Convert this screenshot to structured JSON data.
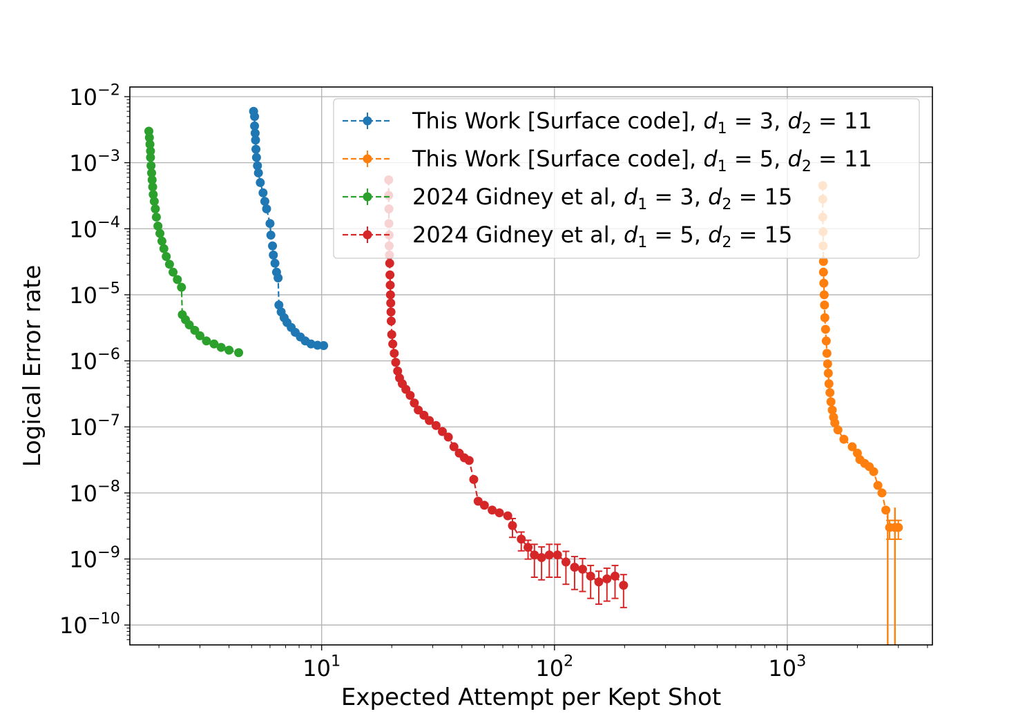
{
  "chart_data": {
    "type": "scatter",
    "xlabel": "Expected Attempt per Kept Shot",
    "ylabel": "Logical Error rate",
    "xscale": "log",
    "yscale": "log",
    "xlim": [
      1.5,
      4200
    ],
    "ylim": [
      5e-11,
      0.014
    ],
    "grid": true,
    "legend_position": "top-right",
    "x_ticks": [
      {
        "value": 10,
        "base": "10",
        "exp": "1"
      },
      {
        "value": 100,
        "base": "10",
        "exp": "2"
      },
      {
        "value": 1000,
        "base": "10",
        "exp": "3"
      }
    ],
    "y_ticks": [
      {
        "value": 0.01,
        "base": "10",
        "exp": "−2"
      },
      {
        "value": 0.001,
        "base": "10",
        "exp": "−3"
      },
      {
        "value": 0.0001,
        "base": "10",
        "exp": "−4"
      },
      {
        "value": 1e-05,
        "base": "10",
        "exp": "−5"
      },
      {
        "value": 1e-06,
        "base": "10",
        "exp": "−6"
      },
      {
        "value": 1e-07,
        "base": "10",
        "exp": "−7"
      },
      {
        "value": 1e-08,
        "base": "10",
        "exp": "−8"
      },
      {
        "value": 1e-09,
        "base": "10",
        "exp": "−9"
      },
      {
        "value": 1e-10,
        "base": "10",
        "exp": "−10"
      }
    ],
    "series": [
      {
        "name": "This Work [Surface code], d1 = 3, d2 = 11",
        "legend": {
          "prefix": "This Work [Surface code], ",
          "d1": "3",
          "d2": "11"
        },
        "color": "#1f77b4",
        "points": [
          [
            5.1,
            0.006
          ],
          [
            5.15,
            0.005
          ],
          [
            5.15,
            0.0036
          ],
          [
            5.18,
            0.0028
          ],
          [
            5.2,
            0.0022
          ],
          [
            5.22,
            0.0016
          ],
          [
            5.25,
            0.0012
          ],
          [
            5.3,
            0.0009
          ],
          [
            5.35,
            0.0007
          ],
          [
            5.45,
            0.0005
          ],
          [
            5.6,
            0.00035
          ],
          [
            5.7,
            0.00026
          ],
          [
            5.8,
            0.0002
          ],
          [
            6.0,
            0.00012
          ],
          [
            6.05,
            8e-05
          ],
          [
            6.15,
            5.5e-05
          ],
          [
            6.2,
            4e-05
          ],
          [
            6.3,
            3e-05
          ],
          [
            6.4,
            2.2e-05
          ],
          [
            6.5,
            1.8e-05
          ],
          [
            6.55,
            7e-06
          ],
          [
            6.7,
            5.5e-06
          ],
          [
            6.9,
            4.5e-06
          ],
          [
            7.1,
            3.8e-06
          ],
          [
            7.4,
            3.2e-06
          ],
          [
            7.7,
            2.7e-06
          ],
          [
            8.1,
            2.3e-06
          ],
          [
            8.5,
            2e-06
          ],
          [
            9.0,
            1.8e-06
          ],
          [
            9.6,
            1.72e-06
          ],
          [
            10.2,
            1.7e-06
          ]
        ]
      },
      {
        "name": "This Work [Surface code], d1 = 5, d2 = 11",
        "legend": {
          "prefix": "This Work [Surface code], ",
          "d1": "5",
          "d2": "11"
        },
        "color": "#ff7f0e",
        "points": [
          [
            1420,
            0.00045
          ],
          [
            1420,
            0.00028
          ],
          [
            1420,
            0.00015
          ],
          [
            1425,
            9e-05
          ],
          [
            1425,
            5.5e-05
          ],
          [
            1430,
            3.2e-05
          ],
          [
            1430,
            2.2e-05
          ],
          [
            1435,
            1.5e-05
          ],
          [
            1440,
            1e-05
          ],
          [
            1445,
            7e-06
          ],
          [
            1450,
            4.5e-06
          ],
          [
            1460,
            3e-06
          ],
          [
            1470,
            2e-06
          ],
          [
            1480,
            1.3e-06
          ],
          [
            1490,
            9e-07
          ],
          [
            1500,
            6.5e-07
          ],
          [
            1510,
            4.5e-07
          ],
          [
            1525,
            3.3e-07
          ],
          [
            1540,
            2.4e-07
          ],
          [
            1560,
            1.8e-07
          ],
          [
            1580,
            1.4e-07
          ],
          [
            1600,
            1.15e-07
          ],
          [
            1650,
            9e-08
          ],
          [
            1750,
            6.5e-08
          ],
          [
            1900,
            5e-08
          ],
          [
            2000,
            4e-08
          ],
          [
            2050,
            3.2e-08
          ],
          [
            2150,
            2.8e-08
          ],
          [
            2250,
            2.5e-08
          ],
          [
            2350,
            2.1e-08
          ],
          [
            2450,
            1.3e-08
          ],
          [
            2550,
            1e-08
          ],
          [
            2650,
            5.5e-09
          ],
          [
            2750,
            3e-09
          ],
          [
            2900,
            3e-09
          ],
          [
            3000,
            3e-09
          ]
        ]
      },
      {
        "name": "2024 Gidney et al, d1 = 3, d2 = 15",
        "legend": {
          "prefix": "2024 Gidney et al, ",
          "d1": "3",
          "d2": "15"
        },
        "color": "#2ca02c",
        "points": [
          [
            1.81,
            0.003
          ],
          [
            1.82,
            0.0024
          ],
          [
            1.83,
            0.0019
          ],
          [
            1.84,
            0.0015
          ],
          [
            1.84,
            0.0012
          ],
          [
            1.85,
            0.0009
          ],
          [
            1.86,
            0.0007
          ],
          [
            1.87,
            0.00055
          ],
          [
            1.88,
            0.00043
          ],
          [
            1.89,
            0.00033
          ],
          [
            1.91,
            0.00026
          ],
          [
            1.93,
            0.0002
          ],
          [
            1.95,
            0.00015
          ],
          [
            1.98,
            0.00011
          ],
          [
            2.02,
            8.5e-05
          ],
          [
            2.06,
            6.5e-05
          ],
          [
            2.1,
            5e-05
          ],
          [
            2.15,
            3.8e-05
          ],
          [
            2.22,
            2.9e-05
          ],
          [
            2.3,
            2.2e-05
          ],
          [
            2.4,
            1.7e-05
          ],
          [
            2.5,
            1.3e-05
          ],
          [
            2.52,
            5e-06
          ],
          [
            2.6,
            4.2e-06
          ],
          [
            2.7,
            3.5e-06
          ],
          [
            2.85,
            2.9e-06
          ],
          [
            3.0,
            2.4e-06
          ],
          [
            3.2,
            2e-06
          ],
          [
            3.45,
            1.8e-06
          ],
          [
            3.7,
            1.6e-06
          ],
          [
            4.0,
            1.45e-06
          ],
          [
            4.4,
            1.33e-06
          ]
        ]
      },
      {
        "name": "2024 Gidney et al, d1 = 5, d2 = 15",
        "legend": {
          "prefix": "2024 Gidney et al, ",
          "d1": "5",
          "d2": "15"
        },
        "color": "#d62728",
        "points": [
          [
            19.4,
            0.00055
          ],
          [
            19.4,
            0.00032
          ],
          [
            19.45,
            0.0002
          ],
          [
            19.45,
            0.00012
          ],
          [
            19.5,
            8e-05
          ],
          [
            19.5,
            5.5e-05
          ],
          [
            19.55,
            4e-05
          ],
          [
            19.6,
            3e-05
          ],
          [
            19.65,
            2e-05
          ],
          [
            19.7,
            1.4e-05
          ],
          [
            19.75,
            1e-05
          ],
          [
            19.8,
            7.5e-06
          ],
          [
            19.85,
            5.5e-06
          ],
          [
            19.9,
            4e-06
          ],
          [
            20.0,
            2.5e-06
          ],
          [
            20.2,
            1.8e-06
          ],
          [
            20.5,
            1.3e-06
          ],
          [
            20.8,
            9.5e-07
          ],
          [
            21.2,
            7e-07
          ],
          [
            21.6,
            5.5e-07
          ],
          [
            22.2,
            4.5e-07
          ],
          [
            23.0,
            3.7e-07
          ],
          [
            24.0,
            3e-07
          ],
          [
            25.0,
            2.3e-07
          ],
          [
            26.0,
            1.8e-07
          ],
          [
            27.5,
            1.5e-07
          ],
          [
            29.0,
            1.25e-07
          ],
          [
            31.0,
            1.05e-07
          ],
          [
            33.0,
            8.5e-08
          ],
          [
            35.0,
            7e-08
          ],
          [
            37.0,
            5e-08
          ],
          [
            39.0,
            4e-08
          ],
          [
            41.0,
            3.4e-08
          ],
          [
            43.0,
            3.1e-08
          ],
          [
            45.0,
            1.6e-08
          ],
          [
            47.0,
            7.5e-09
          ],
          [
            50.0,
            6.5e-09
          ],
          [
            54.0,
            5.5e-09
          ],
          [
            58.0,
            5e-09
          ],
          [
            63.0,
            4.5e-09
          ],
          [
            66.0,
            3.2e-09
          ],
          [
            72.0,
            2e-09
          ],
          [
            77.0,
            1.5e-09
          ],
          [
            82.0,
            1.15e-09
          ],
          [
            88.0,
            1.05e-09
          ],
          [
            95.0,
            1.15e-09
          ],
          [
            103.0,
            1.15e-09
          ],
          [
            112.0,
            9e-10
          ],
          [
            122.0,
            7.5e-10
          ],
          [
            132.0,
            7e-10
          ],
          [
            143.0,
            5.5e-10
          ],
          [
            155.0,
            4.5e-10
          ],
          [
            168.0,
            5e-10
          ],
          [
            182.0,
            5.5e-10
          ],
          [
            198.0,
            4e-10
          ]
        ]
      }
    ]
  }
}
